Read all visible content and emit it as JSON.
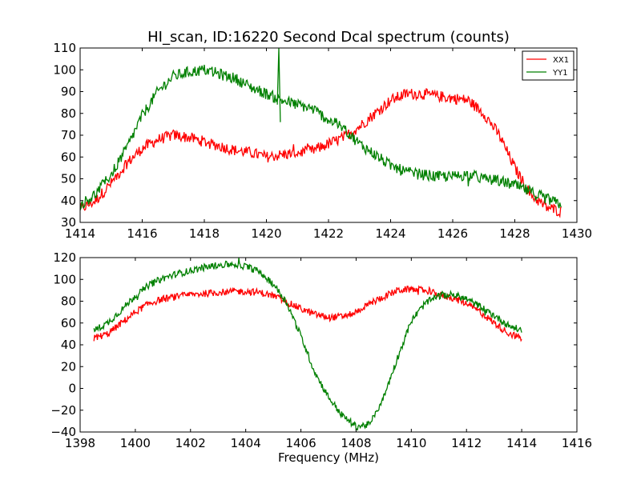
{
  "figure": {
    "title": "HI_scan, ID:16220 Second Dcal spectrum (counts)"
  },
  "chart_data": [
    {
      "type": "line",
      "title": "HI_scan, ID:16220 Second Dcal spectrum (counts)",
      "xlabel": "",
      "ylabel": "",
      "xlim": [
        1414,
        1430
      ],
      "ylim": [
        30,
        110
      ],
      "xticks": [
        1414,
        1416,
        1418,
        1420,
        1422,
        1424,
        1426,
        1428,
        1430
      ],
      "yticks": [
        30,
        40,
        50,
        60,
        70,
        80,
        90,
        100,
        110
      ],
      "xtick_labels": [
        "1414",
        "1416",
        "1418",
        "1420",
        "1422",
        "1424",
        "1426",
        "1428",
        "1430"
      ],
      "ytick_labels": [
        "30",
        "40",
        "50",
        "60",
        "70",
        "80",
        "90",
        "100",
        "110"
      ],
      "grid": false,
      "legend": "top-right",
      "series": [
        {
          "name": "XX1",
          "color": "#ff0000",
          "x": [
            1414.0,
            1414.5,
            1415.0,
            1415.5,
            1416.0,
            1416.5,
            1417.0,
            1417.5,
            1418.0,
            1418.5,
            1419.0,
            1419.5,
            1420.0,
            1420.5,
            1421.0,
            1421.5,
            1422.0,
            1422.5,
            1423.0,
            1423.5,
            1424.0,
            1424.5,
            1425.0,
            1425.5,
            1426.0,
            1426.5,
            1427.0,
            1427.5,
            1428.0,
            1428.5,
            1429.0,
            1429.5
          ],
          "y": [
            36,
            40,
            48,
            57,
            64,
            68,
            70,
            69,
            67,
            65,
            63,
            62,
            60,
            61,
            62,
            63,
            66,
            69,
            74,
            80,
            86,
            89,
            89,
            88,
            87,
            86,
            80,
            70,
            55,
            43,
            37,
            35
          ]
        },
        {
          "name": "YY1",
          "color": "#008000",
          "x": [
            1414.0,
            1414.5,
            1415.0,
            1415.5,
            1416.0,
            1416.5,
            1417.0,
            1417.5,
            1418.0,
            1418.5,
            1419.0,
            1419.5,
            1420.0,
            1420.5,
            1421.0,
            1421.5,
            1422.0,
            1422.5,
            1423.0,
            1423.5,
            1424.0,
            1424.5,
            1425.0,
            1425.5,
            1426.0,
            1426.5,
            1427.0,
            1427.5,
            1428.0,
            1428.5,
            1429.0,
            1429.5
          ],
          "y": [
            38,
            43,
            52,
            64,
            79,
            90,
            97,
            99,
            100,
            98,
            96,
            92,
            89,
            86,
            84,
            82,
            77,
            73,
            66,
            61,
            56,
            53,
            52,
            51,
            51,
            52,
            50,
            49,
            47,
            44,
            41,
            38
          ]
        }
      ]
    },
    {
      "type": "line",
      "title": "",
      "xlabel": "Frequency (MHz)",
      "ylabel": "",
      "xlim": [
        1398,
        1416
      ],
      "ylim": [
        -40,
        120
      ],
      "xticks": [
        1398,
        1400,
        1402,
        1404,
        1406,
        1408,
        1410,
        1412,
        1414,
        1416
      ],
      "yticks": [
        -40,
        -20,
        0,
        20,
        40,
        60,
        80,
        100,
        120
      ],
      "xtick_labels": [
        "1398",
        "1400",
        "1402",
        "1404",
        "1406",
        "1408",
        "1410",
        "1412",
        "1414",
        "1416"
      ],
      "ytick_labels": [
        "−40",
        "−20",
        "0",
        "20",
        "40",
        "60",
        "80",
        "100",
        "120"
      ],
      "grid": false,
      "legend": "none",
      "series": [
        {
          "name": "XX1",
          "color": "#ff0000",
          "x": [
            1398.5,
            1399.0,
            1399.5,
            1400.0,
            1400.5,
            1401.0,
            1401.5,
            1402.0,
            1402.5,
            1403.0,
            1403.5,
            1404.0,
            1404.5,
            1405.0,
            1405.5,
            1406.0,
            1406.5,
            1407.0,
            1407.5,
            1408.0,
            1408.5,
            1409.0,
            1409.5,
            1410.0,
            1410.5,
            1411.0,
            1411.5,
            1412.0,
            1412.5,
            1413.0,
            1413.5,
            1414.0
          ],
          "y": [
            46,
            50,
            60,
            70,
            78,
            82,
            84,
            86,
            87,
            88,
            89,
            89,
            88,
            85,
            79,
            73,
            68,
            65,
            66,
            70,
            78,
            84,
            90,
            91,
            90,
            86,
            83,
            78,
            70,
            60,
            51,
            46
          ]
        },
        {
          "name": "YY1",
          "color": "#008000",
          "x": [
            1398.5,
            1399.0,
            1399.5,
            1400.0,
            1400.5,
            1401.0,
            1401.5,
            1402.0,
            1402.5,
            1403.0,
            1403.5,
            1404.0,
            1404.5,
            1405.0,
            1405.5,
            1406.0,
            1406.5,
            1407.0,
            1407.5,
            1408.0,
            1408.5,
            1409.0,
            1409.5,
            1410.0,
            1410.5,
            1411.0,
            1411.5,
            1412.0,
            1412.5,
            1413.0,
            1413.5,
            1414.0
          ],
          "y": [
            53,
            60,
            72,
            85,
            95,
            101,
            105,
            108,
            111,
            113,
            114,
            112,
            107,
            96,
            78,
            48,
            15,
            -8,
            -25,
            -35,
            -33,
            -8,
            28,
            62,
            78,
            85,
            86,
            82,
            75,
            67,
            58,
            53
          ]
        }
      ]
    }
  ]
}
